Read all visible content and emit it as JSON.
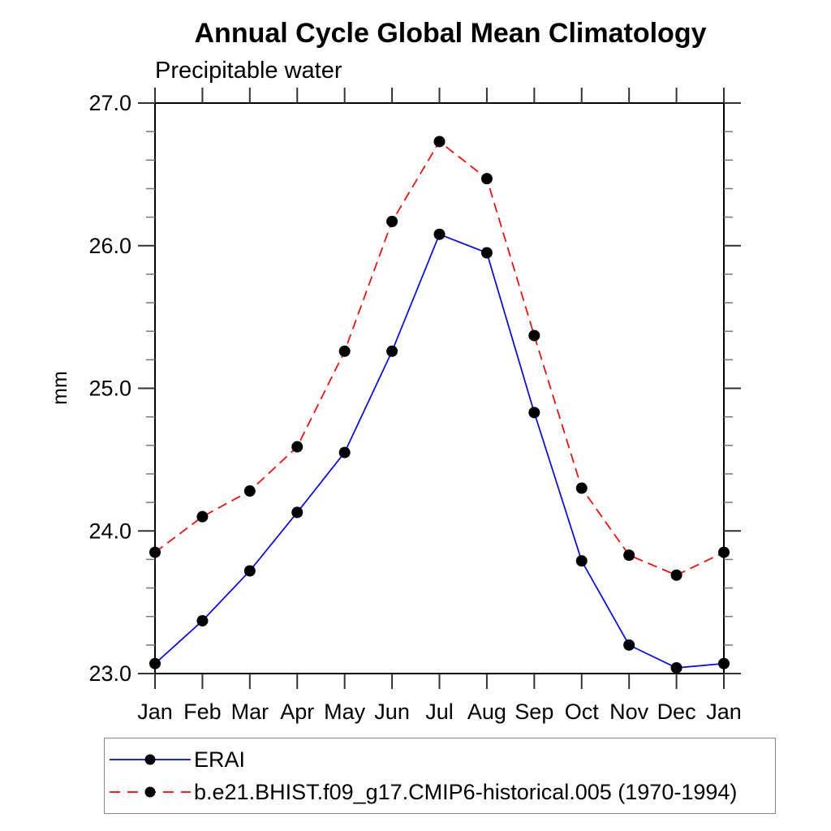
{
  "title": "Annual Cycle Global Mean Climatology",
  "subtitle": "Precipitable water",
  "legend": {
    "items": [
      {
        "label": "ERAI",
        "color": "#0000ff",
        "style": "solid"
      },
      {
        "label": "b.e21.BHIST.f09_g17.CMIP6-historical.005 (1970-1994)",
        "color": "#ff0000",
        "style": "dashed"
      }
    ]
  },
  "chart_data": {
    "type": "line",
    "title": "Annual Cycle Global Mean Climatology",
    "subtitle": "Precipitable water",
    "ylabel": "mm",
    "xlabel": "",
    "categories": [
      "Jan",
      "Feb",
      "Mar",
      "Apr",
      "May",
      "Jun",
      "Jul",
      "Aug",
      "Sep",
      "Oct",
      "Nov",
      "Dec",
      "Jan"
    ],
    "series": [
      {
        "name": "ERAI",
        "color": "#0000ff",
        "dash": "solid",
        "marker": "circle",
        "values": [
          23.07,
          23.37,
          23.72,
          24.13,
          24.55,
          25.26,
          26.08,
          25.95,
          24.83,
          23.79,
          23.2,
          23.04,
          23.07
        ]
      },
      {
        "name": "b.e21.BHIST.f09_g17.CMIP6-historical.005 (1970-1994)",
        "color": "#ff0000",
        "dash": "dashed",
        "marker": "circle",
        "values": [
          23.85,
          24.1,
          24.28,
          24.59,
          25.26,
          26.17,
          26.73,
          26.47,
          25.37,
          24.3,
          23.83,
          23.69,
          23.85
        ]
      }
    ],
    "ylim": [
      23.0,
      27.0
    ],
    "ytick_major": [
      23.0,
      24.0,
      25.0,
      26.0,
      27.0
    ],
    "ytick_labels": [
      "23.0",
      "24.0",
      "25.0",
      "26.0",
      "27.0"
    ],
    "ytick_minor_step": 0.2,
    "grid": false,
    "marker_color": "#000000",
    "legend_position": "bottom-left"
  }
}
